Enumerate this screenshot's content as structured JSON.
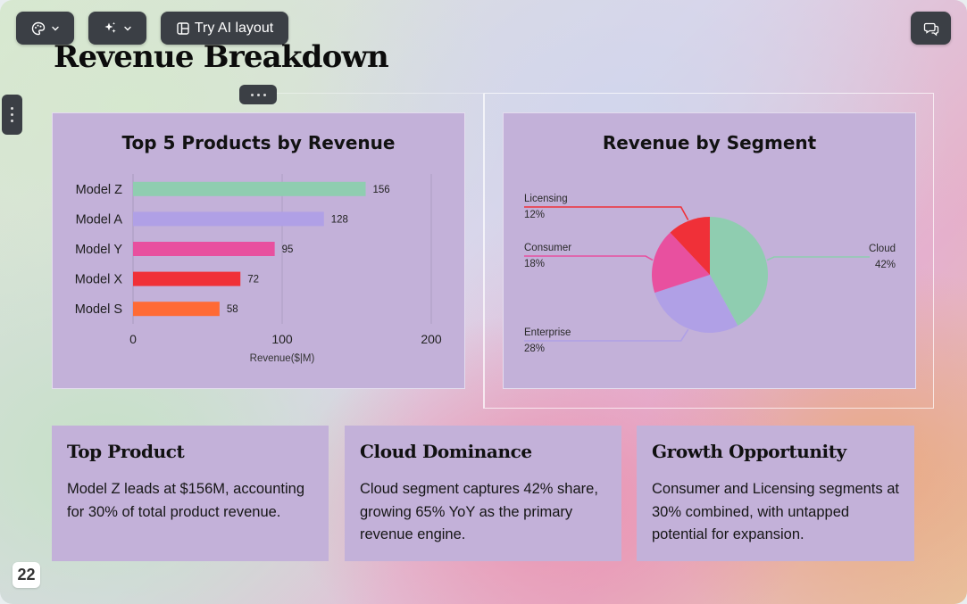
{
  "toolbar": {
    "theme_icon": "palette-icon",
    "ai_icon": "sparkles-icon",
    "ai_layout_icon": "layout-icon",
    "ai_layout_label": "Try AI layout",
    "comments_icon": "comments-icon"
  },
  "slide": {
    "title": "Revenue Breakdown",
    "page_number": "22"
  },
  "bar_panel": {
    "title": "Top 5 Products by Revenue"
  },
  "pie_panel": {
    "title": "Revenue by Segment"
  },
  "chart_data": [
    {
      "type": "bar",
      "orientation": "horizontal",
      "title": "Top 5 Products by Revenue",
      "categories": [
        "Model Z",
        "Model A",
        "Model Y",
        "Model X",
        "Model S"
      ],
      "values": [
        156,
        128,
        95,
        72,
        58
      ],
      "colors": [
        "#8fcdb0",
        "#b0a0e6",
        "#e8509f",
        "#f03038",
        "#ff6a35"
      ],
      "xlabel": "Revenue($|M)",
      "ylabel": "",
      "xlim": [
        0,
        200
      ],
      "xticks": [
        0,
        100,
        200
      ],
      "grid": true
    },
    {
      "type": "pie",
      "title": "Revenue by Segment",
      "labels": [
        "Cloud",
        "Enterprise",
        "Consumer",
        "Licensing"
      ],
      "values": [
        42,
        28,
        18,
        12
      ],
      "value_labels": [
        "42%",
        "28%",
        "18%",
        "12%"
      ],
      "colors": [
        "#8fcdb0",
        "#b0a0e6",
        "#e8509f",
        "#f03038"
      ]
    }
  ],
  "cards": [
    {
      "title": "Top Product",
      "body": "Model Z leads at $156M, accounting for 30% of total product revenue."
    },
    {
      "title": "Cloud Dominance",
      "body": "Cloud segment captures 42% share, growing 65% YoY as the primary revenue engine."
    },
    {
      "title": "Growth Opportunity",
      "body": "Consumer and Licensing segments at 30% combined, with untapped potential for expansion."
    }
  ]
}
